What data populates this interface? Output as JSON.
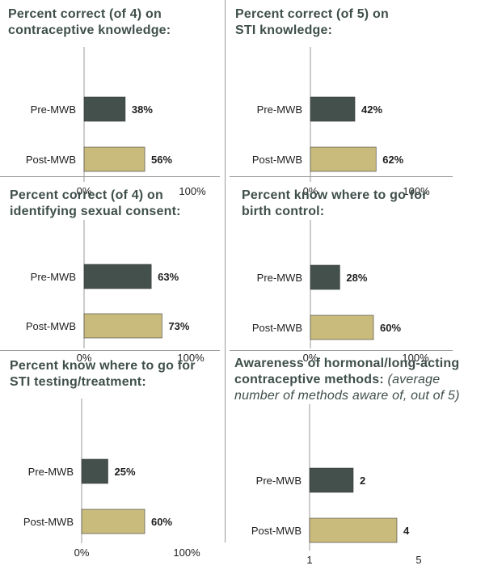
{
  "colors": {
    "pre": "#43504b",
    "post": "#c9bb7c",
    "title": "#3f4f4b"
  },
  "chart_data": [
    {
      "type": "bar",
      "title": "Percent correct (of 4) on contraceptive knowledge:",
      "categories": [
        "Pre-MWB",
        "Post-MWB"
      ],
      "values": [
        38,
        56
      ],
      "value_labels": [
        "38%",
        "56%"
      ],
      "xlim": [
        0,
        100
      ],
      "tick_labels": [
        "0%",
        "100%"
      ]
    },
    {
      "type": "bar",
      "title": "Percent correct (of 5) on STI knowledge:",
      "categories": [
        "Pre-MWB",
        "Post-MWB"
      ],
      "values": [
        42,
        62
      ],
      "value_labels": [
        "42%",
        "62%"
      ],
      "xlim": [
        0,
        100
      ],
      "tick_labels": [
        "0%",
        "100%"
      ]
    },
    {
      "type": "bar",
      "title": "Percent correct (of 4) on identifying sexual consent:",
      "categories": [
        "Pre-MWB",
        "Post-MWB"
      ],
      "values": [
        63,
        73
      ],
      "value_labels": [
        "63%",
        "73%"
      ],
      "xlim": [
        0,
        100
      ],
      "tick_labels": [
        "0%",
        "100%"
      ]
    },
    {
      "type": "bar",
      "title": "Percent know where to go for birth control:",
      "categories": [
        "Pre-MWB",
        "Post-MWB"
      ],
      "values": [
        28,
        60
      ],
      "value_labels": [
        "28%",
        "60%"
      ],
      "xlim": [
        0,
        100
      ],
      "tick_labels": [
        "0%",
        "100%"
      ]
    },
    {
      "type": "bar",
      "title": "Percent know where to go for STI testing/treatment:",
      "categories": [
        "Pre-MWB",
        "Post-MWB"
      ],
      "values": [
        25,
        60
      ],
      "value_labels": [
        "25%",
        "60%"
      ],
      "xlim": [
        0,
        100
      ],
      "tick_labels": [
        "0%",
        "100%"
      ]
    },
    {
      "type": "bar",
      "title": "Awareness of hormonal/long-acting contraceptive methods:",
      "subtitle": "(average number of methods aware of, out of 5)",
      "categories": [
        "Pre-MWB",
        "Post-MWB"
      ],
      "values": [
        2,
        4
      ],
      "value_labels": [
        "2",
        "4"
      ],
      "xlim": [
        0,
        5
      ],
      "tick_labels": [
        "1",
        "5"
      ]
    }
  ]
}
